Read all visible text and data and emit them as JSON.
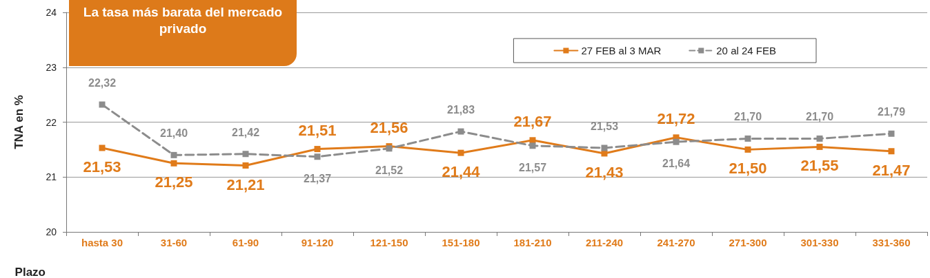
{
  "chart_data": {
    "type": "line",
    "title": "La tasa más barata del mercado privado",
    "xlabel": "Plazo",
    "ylabel": "TNA en %",
    "categories": [
      "hasta 30",
      "31-60",
      "61-90",
      "91-120",
      "121-150",
      "151-180",
      "181-210",
      "211-240",
      "241-270",
      "271-300",
      "301-330",
      "331-360"
    ],
    "series": [
      {
        "name": "27 FEB al 3 MAR",
        "color": "#e07b1a",
        "line_style": "solid",
        "values": [
          21.53,
          21.25,
          21.21,
          21.51,
          21.56,
          21.44,
          21.67,
          21.43,
          21.72,
          21.5,
          21.55,
          21.47
        ],
        "value_labels": [
          "21,53",
          "21,25",
          "21,21",
          "21,51",
          "21,56",
          "21,44",
          "21,67",
          "21,43",
          "21,72",
          "21,50",
          "21,55",
          "21,47"
        ]
      },
      {
        "name": "20 al 24 FEB",
        "color": "#8c8c8c",
        "line_style": "dashed",
        "values": [
          22.32,
          21.4,
          21.42,
          21.37,
          21.52,
          21.83,
          21.57,
          21.53,
          21.64,
          21.7,
          21.7,
          21.79
        ],
        "value_labels": [
          "22,32",
          "21,40",
          "21,42",
          "21,37",
          "21,52",
          "21,83",
          "21,57",
          "21,53",
          "21,64",
          "21,70",
          "21,70",
          "21,79"
        ]
      }
    ],
    "ylim": [
      20,
      24
    ],
    "yticks": [
      20,
      21,
      22,
      23,
      24
    ],
    "grid": "y",
    "legend": "top right",
    "marker": "square"
  }
}
